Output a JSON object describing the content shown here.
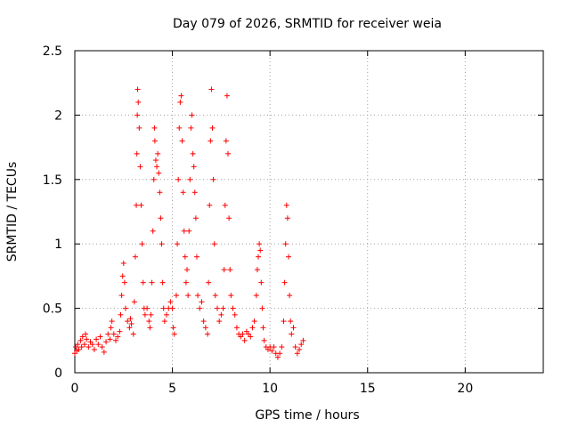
{
  "chart_data": {
    "type": "scatter",
    "title": "Day 079 of 2026, SRMTID for receiver weia",
    "xlabel": "GPS time / hours",
    "ylabel": "SRMTID / TECUs",
    "xlim": [
      0,
      24
    ],
    "ylim": [
      0,
      2.5
    ],
    "xticks": [
      0,
      5,
      10,
      15,
      20
    ],
    "xtick_labels": [
      "0",
      "5",
      "10",
      "15",
      "20"
    ],
    "yticks": [
      0,
      0.5,
      1,
      1.5,
      2,
      2.5
    ],
    "ytick_labels": [
      "0",
      "0.5",
      "1",
      "1.5",
      "2",
      "2.5"
    ],
    "grid": true,
    "marker": "+",
    "color": "#ff0000",
    "series": [
      {
        "name": "SRMTID",
        "points": [
          [
            0.0,
            0.15
          ],
          [
            0.05,
            0.2
          ],
          [
            0.1,
            0.17
          ],
          [
            0.15,
            0.22
          ],
          [
            0.2,
            0.18
          ],
          [
            0.3,
            0.25
          ],
          [
            0.35,
            0.2
          ],
          [
            0.4,
            0.28
          ],
          [
            0.5,
            0.22
          ],
          [
            0.55,
            0.3
          ],
          [
            0.6,
            0.26
          ],
          [
            0.7,
            0.2
          ],
          [
            0.8,
            0.24
          ],
          [
            0.9,
            0.22
          ],
          [
            1.0,
            0.18
          ],
          [
            1.1,
            0.26
          ],
          [
            1.2,
            0.22
          ],
          [
            1.3,
            0.28
          ],
          [
            1.4,
            0.2
          ],
          [
            1.5,
            0.16
          ],
          [
            1.6,
            0.24
          ],
          [
            1.7,
            0.3
          ],
          [
            1.8,
            0.26
          ],
          [
            1.85,
            0.35
          ],
          [
            1.9,
            0.4
          ],
          [
            2.0,
            0.3
          ],
          [
            2.1,
            0.25
          ],
          [
            2.2,
            0.28
          ],
          [
            2.3,
            0.32
          ],
          [
            2.35,
            0.45
          ],
          [
            2.4,
            0.6
          ],
          [
            2.45,
            0.75
          ],
          [
            2.5,
            0.85
          ],
          [
            2.55,
            0.7
          ],
          [
            2.6,
            0.5
          ],
          [
            2.7,
            0.4
          ],
          [
            2.8,
            0.35
          ],
          [
            2.85,
            0.42
          ],
          [
            2.9,
            0.38
          ],
          [
            3.0,
            0.3
          ],
          [
            3.05,
            0.55
          ],
          [
            3.1,
            0.9
          ],
          [
            3.15,
            1.3
          ],
          [
            3.18,
            1.7
          ],
          [
            3.2,
            2.0
          ],
          [
            3.22,
            2.2
          ],
          [
            3.25,
            2.1
          ],
          [
            3.3,
            1.9
          ],
          [
            3.35,
            1.6
          ],
          [
            3.4,
            1.3
          ],
          [
            3.45,
            1.0
          ],
          [
            3.5,
            0.7
          ],
          [
            3.55,
            0.5
          ],
          [
            3.6,
            0.45
          ],
          [
            3.7,
            0.5
          ],
          [
            3.8,
            0.4
          ],
          [
            3.85,
            0.35
          ],
          [
            3.9,
            0.45
          ],
          [
            3.95,
            0.7
          ],
          [
            4.0,
            1.1
          ],
          [
            4.05,
            1.5
          ],
          [
            4.08,
            1.9
          ],
          [
            4.1,
            1.8
          ],
          [
            4.15,
            1.65
          ],
          [
            4.2,
            1.6
          ],
          [
            4.25,
            1.7
          ],
          [
            4.3,
            1.55
          ],
          [
            4.35,
            1.4
          ],
          [
            4.4,
            1.2
          ],
          [
            4.45,
            1.0
          ],
          [
            4.5,
            0.7
          ],
          [
            4.55,
            0.5
          ],
          [
            4.6,
            0.4
          ],
          [
            4.7,
            0.45
          ],
          [
            4.8,
            0.5
          ],
          [
            4.9,
            0.55
          ],
          [
            5.0,
            0.5
          ],
          [
            5.05,
            0.35
          ],
          [
            5.1,
            0.3
          ],
          [
            5.2,
            0.6
          ],
          [
            5.25,
            1.0
          ],
          [
            5.3,
            1.5
          ],
          [
            5.35,
            1.9
          ],
          [
            5.4,
            2.1
          ],
          [
            5.45,
            2.15
          ],
          [
            5.5,
            1.8
          ],
          [
            5.55,
            1.4
          ],
          [
            5.6,
            1.1
          ],
          [
            5.65,
            0.9
          ],
          [
            5.7,
            0.7
          ],
          [
            5.75,
            0.8
          ],
          [
            5.8,
            0.6
          ],
          [
            5.85,
            1.1
          ],
          [
            5.9,
            1.5
          ],
          [
            5.95,
            1.9
          ],
          [
            6.0,
            2.0
          ],
          [
            6.05,
            1.7
          ],
          [
            6.1,
            1.6
          ],
          [
            6.15,
            1.4
          ],
          [
            6.2,
            1.2
          ],
          [
            6.25,
            0.9
          ],
          [
            6.3,
            0.6
          ],
          [
            6.4,
            0.5
          ],
          [
            6.5,
            0.55
          ],
          [
            6.6,
            0.4
          ],
          [
            6.7,
            0.35
          ],
          [
            6.8,
            0.3
          ],
          [
            6.85,
            0.7
          ],
          [
            6.9,
            1.3
          ],
          [
            6.95,
            1.8
          ],
          [
            7.0,
            2.2
          ],
          [
            7.05,
            1.9
          ],
          [
            7.1,
            1.5
          ],
          [
            7.15,
            1.0
          ],
          [
            7.2,
            0.6
          ],
          [
            7.3,
            0.5
          ],
          [
            7.4,
            0.4
          ],
          [
            7.5,
            0.45
          ],
          [
            7.6,
            0.5
          ],
          [
            7.65,
            0.8
          ],
          [
            7.7,
            1.3
          ],
          [
            7.75,
            1.8
          ],
          [
            7.8,
            2.15
          ],
          [
            7.85,
            1.7
          ],
          [
            7.9,
            1.2
          ],
          [
            7.95,
            0.8
          ],
          [
            8.0,
            0.6
          ],
          [
            8.1,
            0.5
          ],
          [
            8.2,
            0.45
          ],
          [
            8.3,
            0.35
          ],
          [
            8.4,
            0.3
          ],
          [
            8.5,
            0.28
          ],
          [
            8.6,
            0.3
          ],
          [
            8.7,
            0.25
          ],
          [
            8.8,
            0.32
          ],
          [
            8.9,
            0.3
          ],
          [
            9.0,
            0.28
          ],
          [
            9.1,
            0.35
          ],
          [
            9.2,
            0.4
          ],
          [
            9.3,
            0.6
          ],
          [
            9.35,
            0.8
          ],
          [
            9.4,
            0.9
          ],
          [
            9.45,
            1.0
          ],
          [
            9.5,
            0.95
          ],
          [
            9.55,
            0.7
          ],
          [
            9.6,
            0.5
          ],
          [
            9.65,
            0.35
          ],
          [
            9.7,
            0.25
          ],
          [
            9.8,
            0.2
          ],
          [
            9.9,
            0.18
          ],
          [
            10.0,
            0.2
          ],
          [
            10.1,
            0.17
          ],
          [
            10.2,
            0.2
          ],
          [
            10.3,
            0.15
          ],
          [
            10.4,
            0.12
          ],
          [
            10.5,
            0.15
          ],
          [
            10.6,
            0.2
          ],
          [
            10.7,
            0.4
          ],
          [
            10.75,
            0.7
          ],
          [
            10.8,
            1.0
          ],
          [
            10.85,
            1.3
          ],
          [
            10.9,
            1.2
          ],
          [
            10.95,
            0.9
          ],
          [
            11.0,
            0.6
          ],
          [
            11.05,
            0.4
          ],
          [
            11.1,
            0.3
          ],
          [
            11.2,
            0.35
          ],
          [
            11.3,
            0.2
          ],
          [
            11.4,
            0.15
          ],
          [
            11.5,
            0.18
          ],
          [
            11.6,
            0.22
          ],
          [
            11.7,
            0.25
          ]
        ]
      }
    ]
  }
}
